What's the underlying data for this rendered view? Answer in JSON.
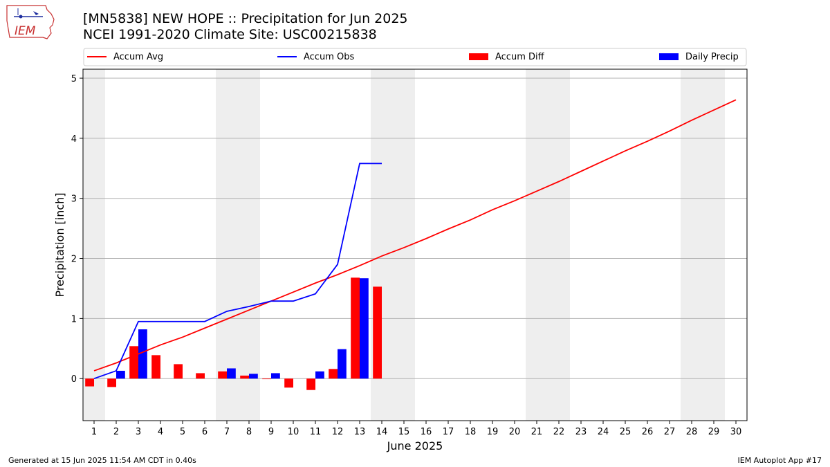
{
  "header": {
    "logo_text": "IEM",
    "title_line1": "[MN5838] NEW HOPE :: Precipitation for Jun 2025",
    "title_line2": "NCEI 1991-2020 Climate Site: USC00215838"
  },
  "footer": {
    "left": "Generated at 15 Jun 2025 11:54 AM CDT in 0.40s",
    "right": "IEM Autoplot App #17"
  },
  "colors": {
    "avg": "#ff0000",
    "obs": "#0000ff",
    "diff": "#ff0000",
    "daily": "#0000ff",
    "weekend_band": "#eeeeee",
    "grid": "#b0b0b0"
  },
  "chart_data": {
    "type": "bar",
    "xlabel": "June 2025",
    "ylabel": "Precipitation [inch]",
    "xlim": [
      0.5,
      30.5
    ],
    "ylim": [
      -0.7,
      5.15
    ],
    "yticks": [
      0,
      1,
      2,
      3,
      4,
      5
    ],
    "x": [
      1,
      2,
      3,
      4,
      5,
      6,
      7,
      8,
      9,
      10,
      11,
      12,
      13,
      14,
      15,
      16,
      17,
      18,
      19,
      20,
      21,
      22,
      23,
      24,
      25,
      26,
      27,
      28,
      29,
      30
    ],
    "weekend_days": [
      1,
      7,
      8,
      14,
      15,
      21,
      22,
      28,
      29
    ],
    "grid": "horizontal",
    "legend_position": "top",
    "legend": [
      "Accum Avg",
      "Accum Obs",
      "Accum Diff",
      "Daily Precip"
    ],
    "series": [
      {
        "name": "Accum Avg",
        "kind": "line",
        "x": [
          1,
          2,
          3,
          4,
          5,
          6,
          7,
          8,
          9,
          10,
          11,
          12,
          13,
          14,
          15,
          16,
          17,
          18,
          19,
          20,
          21,
          22,
          23,
          24,
          25,
          26,
          27,
          28,
          29,
          30
        ],
        "values": [
          0.13,
          0.26,
          0.41,
          0.56,
          0.69,
          0.84,
          0.99,
          1.14,
          1.29,
          1.44,
          1.59,
          1.73,
          1.88,
          2.04,
          2.18,
          2.33,
          2.49,
          2.64,
          2.81,
          2.96,
          3.12,
          3.28,
          3.45,
          3.62,
          3.79,
          3.95,
          4.12,
          4.3,
          4.47,
          4.64
        ]
      },
      {
        "name": "Accum Obs",
        "kind": "line",
        "x": [
          1,
          2,
          3,
          4,
          5,
          6,
          7,
          8,
          9,
          10,
          11,
          12,
          13,
          14
        ],
        "values": [
          0.0,
          0.13,
          0.95,
          0.95,
          0.95,
          0.95,
          1.12,
          1.2,
          1.29,
          1.29,
          1.41,
          1.9,
          3.58,
          3.58
        ]
      },
      {
        "name": "Accum Diff",
        "kind": "bar",
        "x": [
          1,
          2,
          3,
          4,
          5,
          6,
          7,
          8,
          9,
          10,
          11,
          12,
          13,
          14
        ],
        "values": [
          -0.13,
          -0.14,
          0.54,
          0.39,
          0.24,
          0.09,
          0.12,
          0.05,
          -0.01,
          -0.15,
          -0.19,
          0.16,
          1.68,
          1.53
        ]
      },
      {
        "name": "Daily Precip",
        "kind": "bar",
        "x": [
          1,
          2,
          3,
          4,
          5,
          6,
          7,
          8,
          9,
          10,
          11,
          12,
          13,
          14
        ],
        "values": [
          0.0,
          0.13,
          0.82,
          0.0,
          0.0,
          0.0,
          0.17,
          0.08,
          0.09,
          0.0,
          0.12,
          0.49,
          1.67,
          0.0
        ]
      }
    ]
  }
}
